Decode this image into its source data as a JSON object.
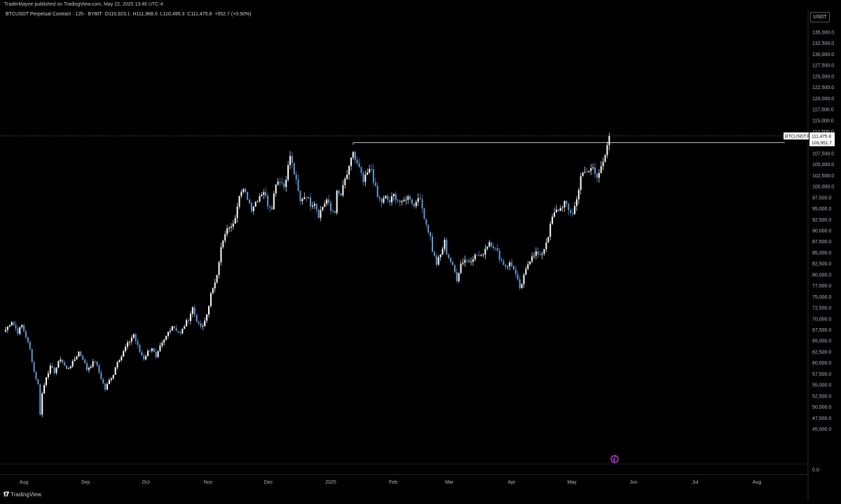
{
  "publisher_line": "TraderMayne published on TradingView.com, May 22, 2025 13:46 UTC-4",
  "symbol": {
    "name": "BTCUSDT Perpetual Contract · 12h · BYBIT",
    "open": "O110,923.1",
    "high": "H111,968.0",
    "low": "L110,495.3",
    "close": "C111,475.8",
    "change": "+552.7 (+0.50%)"
  },
  "currency_label": "USDT",
  "price_labels": [
    "135,000.0",
    "132,500.0",
    "130,000.0",
    "127,500.0",
    "125,000.0",
    "122,500.0",
    "120,000.0",
    "117,500.0",
    "115,000.0",
    "112,500.0",
    "107,500.0",
    "105,000.0",
    "102,500.0",
    "100,000.0",
    "97,500.0",
    "95,000.0",
    "92,500.0",
    "90,000.0",
    "87,500.0",
    "85,000.0",
    "82,500.0",
    "80,000.0",
    "77,500.0",
    "75,000.0",
    "72,500.0",
    "70,000.0",
    "67,500.0",
    "65,000.0",
    "62,500.0",
    "60,000.0",
    "57,500.0",
    "55,000.0",
    "52,500.0",
    "50,000.0",
    "47,500.0",
    "45,000.0"
  ],
  "zero_label": "0.0",
  "time_labels": [
    "Aug",
    "Sep",
    "Oct",
    "Nov",
    "Dec",
    "2025",
    "Feb",
    "Mar",
    "Apr",
    "May",
    "Jun",
    "Jul",
    "Aug"
  ],
  "current_price_tag": {
    "symbol": "BTCUSDT.P",
    "price": "111,475.8"
  },
  "level_tag": "109,951.7",
  "level_value": 109951.7,
  "footer_brand": "TradingView",
  "colors": {
    "up": "#ffffff",
    "down": "#5b9bd5",
    "background": "#000000",
    "grid_axis": "#2a2a2a",
    "alert": "#e040fb"
  },
  "chart_data": {
    "type": "candlestick",
    "title": "BTCUSDT Perpetual Contract · 12h · BYBIT",
    "xlabel": "",
    "ylabel": "",
    "ylim": [
      43500,
      137000
    ],
    "x_ticks": [
      "Aug",
      "Sep",
      "Oct",
      "Nov",
      "Dec",
      "2025",
      "Feb",
      "Mar",
      "Apr",
      "May",
      "Jun",
      "Jul",
      "Aug"
    ],
    "price_path": [
      [
        0,
        67500
      ],
      [
        3,
        69500
      ],
      [
        6,
        67000
      ],
      [
        8,
        68500
      ],
      [
        10,
        66000
      ],
      [
        12,
        63000
      ],
      [
        14,
        58000
      ],
      [
        16,
        55000
      ],
      [
        17,
        48500
      ],
      [
        18,
        53000
      ],
      [
        20,
        57000
      ],
      [
        22,
        59000
      ],
      [
        24,
        58000
      ],
      [
        27,
        61000
      ],
      [
        30,
        58500
      ],
      [
        33,
        60000
      ],
      [
        36,
        62500
      ],
      [
        38,
        61000
      ],
      [
        40,
        58500
      ],
      [
        44,
        60500
      ],
      [
        47,
        56500
      ],
      [
        49,
        54000
      ],
      [
        51,
        56000
      ],
      [
        53,
        57500
      ],
      [
        55,
        60500
      ],
      [
        57,
        61500
      ],
      [
        59,
        63500
      ],
      [
        61,
        65000
      ],
      [
        63,
        66500
      ],
      [
        64,
        65000
      ],
      [
        66,
        62500
      ],
      [
        68,
        61000
      ],
      [
        70,
        62500
      ],
      [
        72,
        63500
      ],
      [
        74,
        61000
      ],
      [
        76,
        63500
      ],
      [
        78,
        65000
      ],
      [
        80,
        67000
      ],
      [
        82,
        68500
      ],
      [
        84,
        67500
      ],
      [
        86,
        66500
      ],
      [
        88,
        68500
      ],
      [
        90,
        70000
      ],
      [
        92,
        72500
      ],
      [
        93,
        71000
      ],
      [
        95,
        68500
      ],
      [
        97,
        68000
      ],
      [
        99,
        71000
      ],
      [
        101,
        75500
      ],
      [
        102,
        76500
      ],
      [
        104,
        80500
      ],
      [
        106,
        86000
      ],
      [
        108,
        89000
      ],
      [
        110,
        91000
      ],
      [
        111,
        90500
      ],
      [
        113,
        93500
      ],
      [
        115,
        98500
      ],
      [
        117,
        99000
      ],
      [
        119,
        97500
      ],
      [
        121,
        95000
      ],
      [
        123,
        96500
      ],
      [
        125,
        98000
      ],
      [
        127,
        99000
      ],
      [
        129,
        96000
      ],
      [
        131,
        95500
      ],
      [
        133,
        101000
      ],
      [
        135,
        101500
      ],
      [
        137,
        100000
      ],
      [
        139,
        104500
      ],
      [
        140,
        107000
      ],
      [
        141,
        105000
      ],
      [
        143,
        101000
      ],
      [
        145,
        96500
      ],
      [
        146,
        97500
      ],
      [
        148,
        98000
      ],
      [
        150,
        96000
      ],
      [
        152,
        96500
      ],
      [
        154,
        93500
      ],
      [
        156,
        95500
      ],
      [
        158,
        97000
      ],
      [
        160,
        94500
      ],
      [
        162,
        94500
      ],
      [
        163,
        98500
      ],
      [
        165,
        98000
      ],
      [
        167,
        101500
      ],
      [
        169,
        104000
      ],
      [
        171,
        108000
      ],
      [
        172,
        106000
      ],
      [
        174,
        104000
      ],
      [
        176,
        101000
      ],
      [
        178,
        103000
      ],
      [
        180,
        104000
      ],
      [
        181,
        101500
      ],
      [
        183,
        97500
      ],
      [
        185,
        96500
      ],
      [
        187,
        97500
      ],
      [
        189,
        96500
      ],
      [
        191,
        98000
      ],
      [
        193,
        97000
      ],
      [
        195,
        96000
      ],
      [
        197,
        97500
      ],
      [
        199,
        97500
      ],
      [
        201,
        95500
      ],
      [
        203,
        98000
      ],
      [
        205,
        95000
      ],
      [
        207,
        91500
      ],
      [
        209,
        88500
      ],
      [
        210,
        85500
      ],
      [
        212,
        82500
      ],
      [
        214,
        84500
      ],
      [
        216,
        87500
      ],
      [
        217,
        85000
      ],
      [
        219,
        83000
      ],
      [
        221,
        80500
      ],
      [
        222,
        79000
      ],
      [
        224,
        82500
      ],
      [
        226,
        83500
      ],
      [
        228,
        83000
      ],
      [
        230,
        84000
      ],
      [
        232,
        84500
      ],
      [
        234,
        84000
      ],
      [
        236,
        86000
      ],
      [
        238,
        87500
      ],
      [
        240,
        86500
      ],
      [
        242,
        85000
      ],
      [
        244,
        83000
      ],
      [
        246,
        82000
      ],
      [
        248,
        82500
      ],
      [
        250,
        81500
      ],
      [
        252,
        78500
      ],
      [
        253,
        76500
      ],
      [
        255,
        79500
      ],
      [
        257,
        82500
      ],
      [
        259,
        84500
      ],
      [
        261,
        85000
      ],
      [
        263,
        84000
      ],
      [
        265,
        86000
      ],
      [
        267,
        89000
      ],
      [
        269,
        93000
      ],
      [
        271,
        94500
      ],
      [
        273,
        95000
      ],
      [
        275,
        96500
      ],
      [
        277,
        94500
      ],
      [
        279,
        94000
      ],
      [
        281,
        97000
      ],
      [
        283,
        102500
      ],
      [
        285,
        103000
      ],
      [
        287,
        103500
      ],
      [
        289,
        104500
      ],
      [
        291,
        102500
      ],
      [
        293,
        104000
      ],
      [
        295,
        106500
      ],
      [
        296,
        109500
      ],
      [
        297,
        111475.8
      ]
    ]
  }
}
